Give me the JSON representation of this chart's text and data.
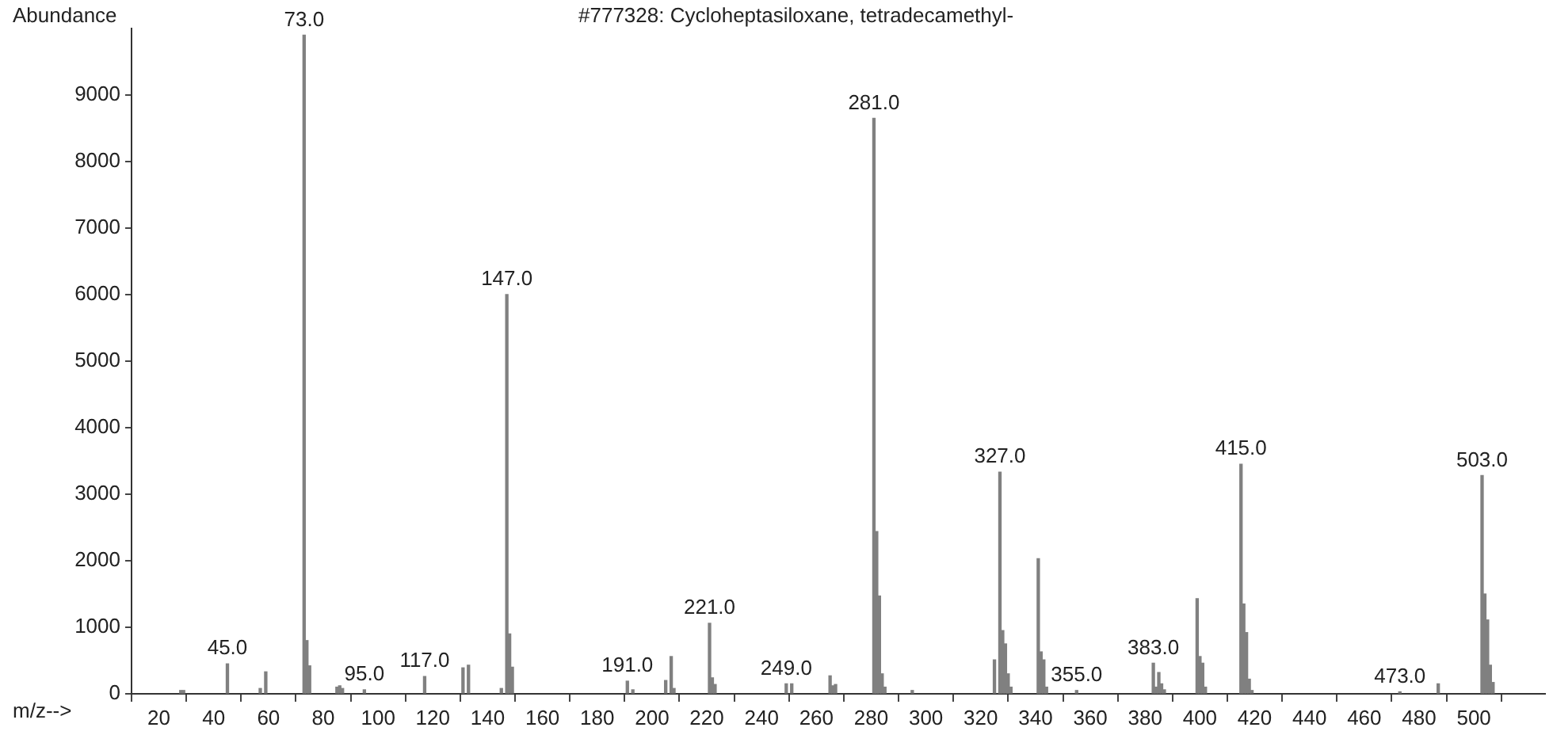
{
  "chart_data": {
    "type": "bar",
    "title": "#777328: Cycloheptasiloxane, tetradecamethyl-",
    "xlabel": "m/z-->",
    "ylabel": "Abundance",
    "x": [
      28,
      29,
      45,
      57,
      59,
      73,
      74,
      75,
      85,
      86,
      87,
      95,
      117,
      131,
      133,
      145,
      147,
      148,
      149,
      191,
      193,
      205,
      207,
      208,
      221,
      222,
      223,
      249,
      251,
      265,
      266,
      267,
      281,
      282,
      283,
      284,
      285,
      295,
      325,
      327,
      328,
      329,
      330,
      331,
      341,
      342,
      343,
      344,
      355,
      383,
      384,
      385,
      386,
      387,
      399,
      400,
      401,
      402,
      415,
      416,
      417,
      418,
      419,
      473,
      487,
      503,
      504,
      505,
      506,
      507
    ],
    "values": [
      50,
      50,
      450,
      80,
      330,
      9900,
      800,
      420,
      100,
      120,
      80,
      60,
      260,
      390,
      430,
      80,
      6000,
      900,
      400,
      190,
      60,
      200,
      560,
      80,
      1060,
      240,
      140,
      150,
      150,
      270,
      120,
      140,
      8650,
      2440,
      1470,
      300,
      100,
      50,
      510,
      3330,
      950,
      750,
      300,
      100,
      2030,
      630,
      510,
      100,
      50,
      460,
      100,
      320,
      150,
      60,
      1430,
      560,
      460,
      100,
      3450,
      1350,
      920,
      220,
      50,
      30,
      150,
      3280,
      1500,
      1110,
      430,
      170
    ],
    "color": "#808080",
    "xlim": [
      10,
      526
    ],
    "ylim": [
      0,
      10000
    ],
    "xticks": [
      20,
      40,
      60,
      80,
      100,
      120,
      140,
      160,
      180,
      200,
      220,
      240,
      260,
      280,
      300,
      320,
      340,
      360,
      380,
      400,
      420,
      440,
      460,
      480,
      500
    ],
    "yticks": [
      0,
      1000,
      2000,
      3000,
      4000,
      5000,
      6000,
      7000,
      8000,
      9000
    ],
    "grid": false,
    "annotations": [
      {
        "text": "45.0",
        "x": 45,
        "y": 450
      },
      {
        "text": "73.0",
        "x": 73,
        "y": 9900
      },
      {
        "text": "95.0",
        "x": 95,
        "y": 60
      },
      {
        "text": "117.0",
        "x": 117,
        "y": 260
      },
      {
        "text": "147.0",
        "x": 147,
        "y": 6000
      },
      {
        "text": "191.0",
        "x": 191,
        "y": 190
      },
      {
        "text": "221.0",
        "x": 221,
        "y": 1060
      },
      {
        "text": "249.0",
        "x": 249,
        "y": 150
      },
      {
        "text": "281.0",
        "x": 281,
        "y": 8650
      },
      {
        "text": "327.0",
        "x": 327,
        "y": 3330
      },
      {
        "text": "355.0",
        "x": 355,
        "y": 50
      },
      {
        "text": "383.0",
        "x": 383,
        "y": 460
      },
      {
        "text": "415.0",
        "x": 415,
        "y": 3450
      },
      {
        "text": "473.0",
        "x": 473,
        "y": 30
      },
      {
        "text": "503.0",
        "x": 503,
        "y": 3280
      }
    ]
  }
}
